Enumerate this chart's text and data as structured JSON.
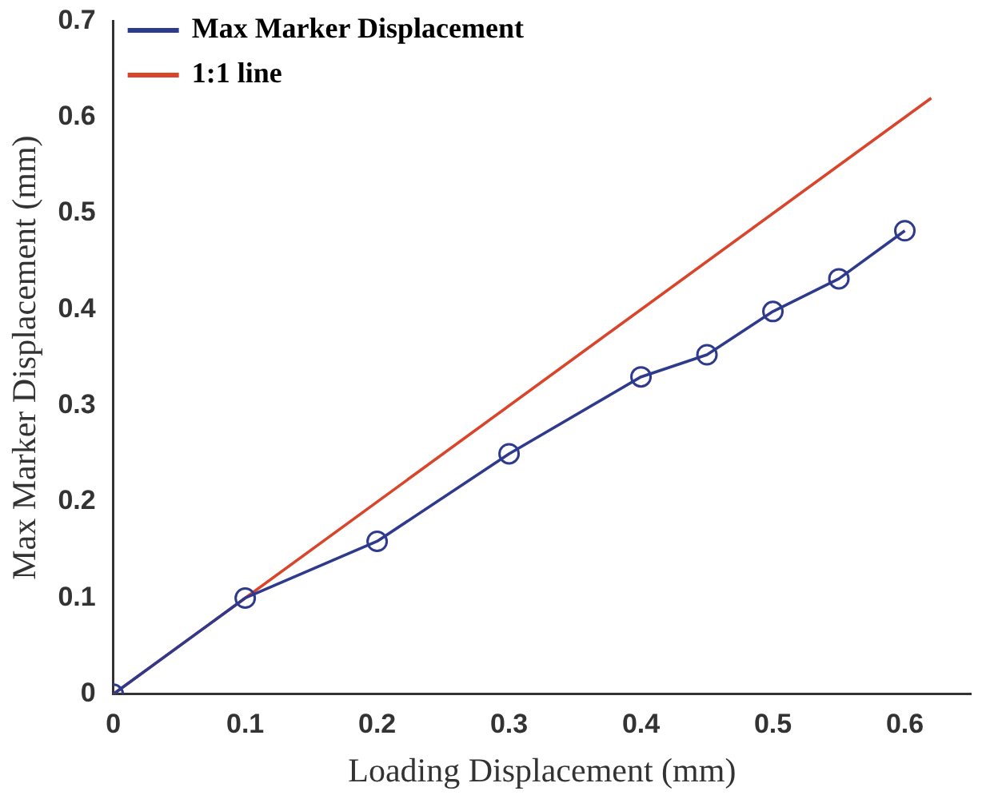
{
  "chart_data": {
    "type": "line",
    "xlabel": "Loading Displacement (mm)",
    "ylabel": "Max Marker Displacement (mm)",
    "xlim": [
      0,
      0.65
    ],
    "xticks": [
      0,
      0.1,
      0.2,
      0.3,
      0.4,
      0.5,
      0.6
    ],
    "ylim": [
      0,
      0.7
    ],
    "yticks": [
      0,
      0.1,
      0.2,
      0.3,
      0.4,
      0.5,
      0.6,
      0.7
    ],
    "grid": false,
    "legend": "top left",
    "series": [
      {
        "name": "Max Marker Displacement",
        "color": "#2e3a8c",
        "marker": "circle",
        "x": [
          0,
          0.1,
          0.2,
          0.3,
          0.4,
          0.45,
          0.5,
          0.55,
          0.6
        ],
        "values": [
          0,
          0.1,
          0.159,
          0.25,
          0.33,
          0.353,
          0.398,
          0.432,
          0.482
        ]
      },
      {
        "name": "1:1 line",
        "color": "#d9452b",
        "marker": "none",
        "x": [
          0,
          0.62
        ],
        "values": [
          0,
          0.62
        ]
      }
    ]
  }
}
